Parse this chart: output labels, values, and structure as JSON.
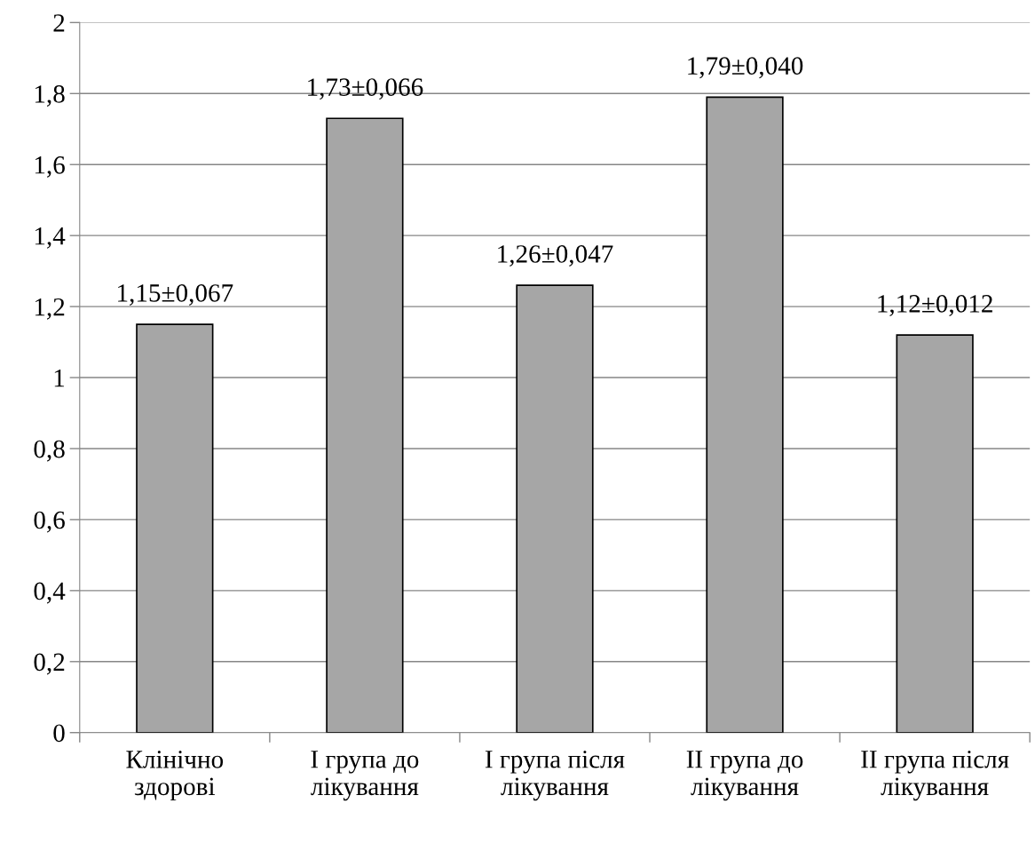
{
  "chart_data": {
    "type": "bar",
    "categories": [
      "Клінічно здорові",
      "I група до лікування",
      "I група після лікування",
      "II група до лікування",
      "II група після лікування"
    ],
    "values": [
      1.15,
      1.73,
      1.26,
      1.79,
      1.12
    ],
    "value_labels": [
      "1,15±0,067",
      "1,73±0,066",
      "1,26±0,047",
      "1,79±0,040",
      "1,12±0,012"
    ],
    "color": "#a6a6a6",
    "ylim": [
      0,
      2
    ],
    "yticks": [
      {
        "value": 0,
        "label": "0"
      },
      {
        "value": 0.2,
        "label": "0,2"
      },
      {
        "value": 0.4,
        "label": "0,4"
      },
      {
        "value": 0.6,
        "label": "0,6"
      },
      {
        "value": 0.8,
        "label": "0,8"
      },
      {
        "value": 1,
        "label": "1"
      },
      {
        "value": 1.2,
        "label": "1,2"
      },
      {
        "value": 1.4,
        "label": "1,4"
      },
      {
        "value": 1.6,
        "label": "1,6"
      },
      {
        "value": 1.8,
        "label": "1,8"
      },
      {
        "value": 2,
        "label": "2"
      }
    ],
    "grid": "y",
    "legend": false
  }
}
